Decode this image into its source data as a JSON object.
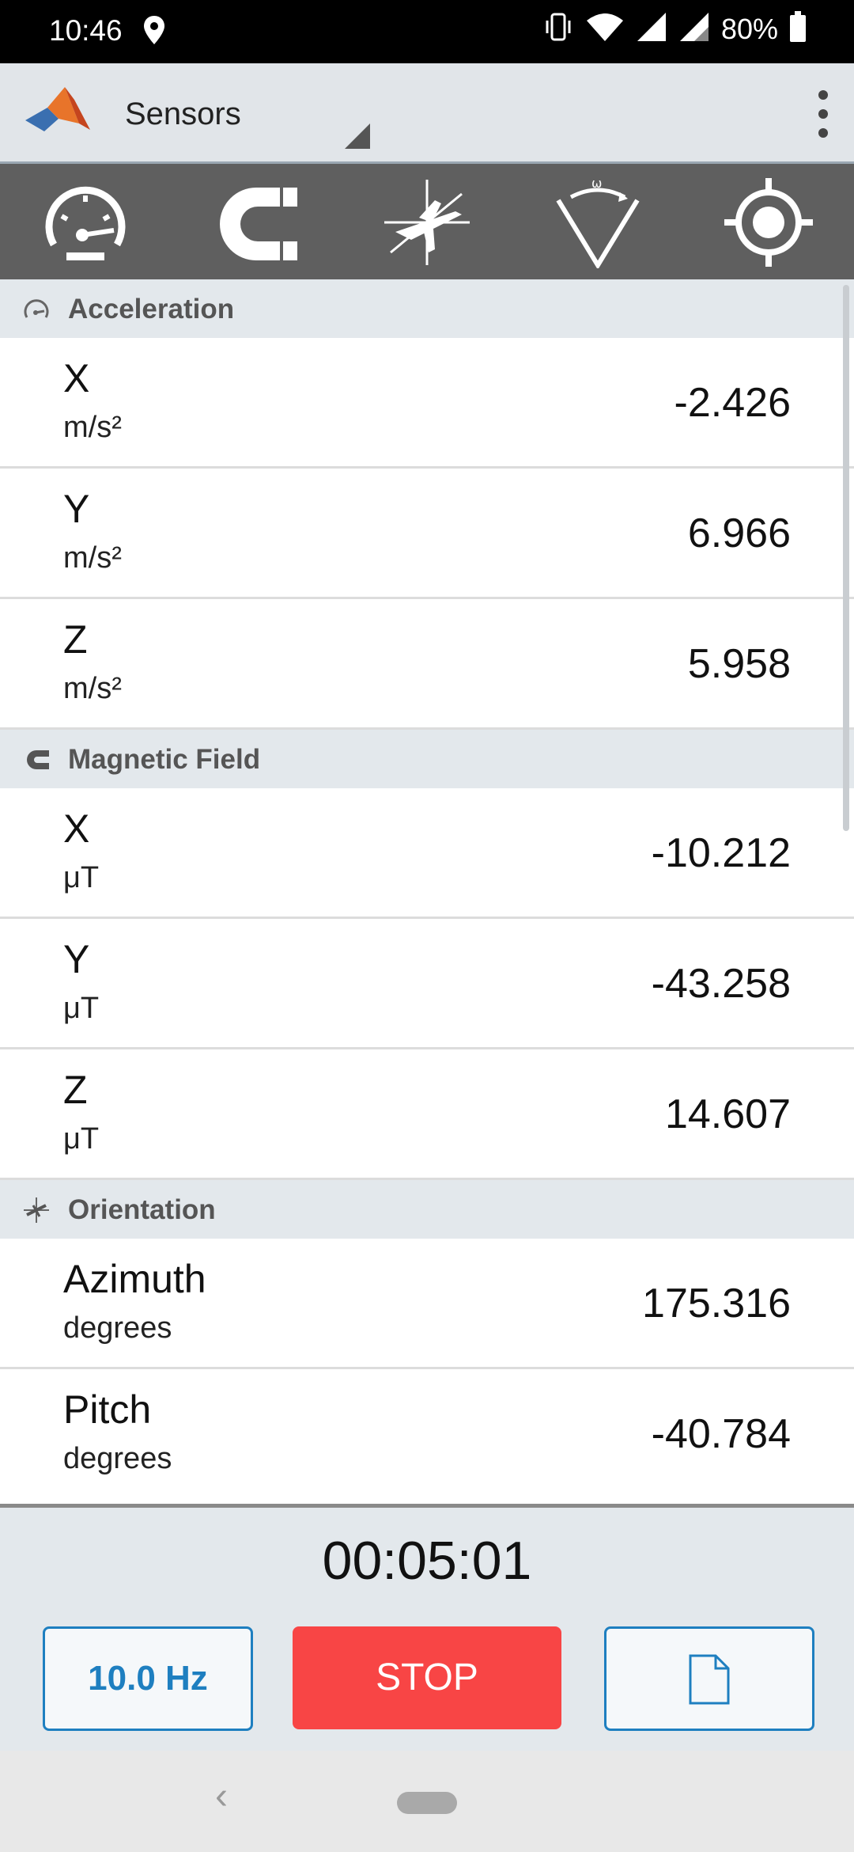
{
  "status_bar": {
    "time": "10:46",
    "battery": "80%",
    "icons": [
      "location-icon",
      "vibrate-icon",
      "wifi-icon",
      "signal-icon",
      "signal-icon-2",
      "battery-icon"
    ]
  },
  "app_bar": {
    "title": "Sensors",
    "logo": "matlab-logo",
    "menu_icon": "more-vert-icon"
  },
  "toolbar": {
    "tools": [
      "acceleration-icon",
      "magnetic-field-icon",
      "orientation-icon",
      "angular-velocity-icon",
      "position-icon"
    ]
  },
  "sections": [
    {
      "title": "Acceleration",
      "rows": [
        {
          "label": "X",
          "unit": "m/s²",
          "value": "-2.426"
        },
        {
          "label": "Y",
          "unit": "m/s²",
          "value": "6.966"
        },
        {
          "label": "Z",
          "unit": "m/s²",
          "value": "5.958"
        }
      ]
    },
    {
      "title": "Magnetic Field",
      "rows": [
        {
          "label": "X",
          "unit": "μT",
          "value": "-10.212"
        },
        {
          "label": "Y",
          "unit": "μT",
          "value": "-43.258"
        },
        {
          "label": "Z",
          "unit": "μT",
          "value": "14.607"
        }
      ]
    },
    {
      "title": "Orientation",
      "rows": [
        {
          "label": "Azimuth",
          "unit": "degrees",
          "value": "175.316"
        },
        {
          "label": "Pitch",
          "unit": "degrees",
          "value": "-40.784"
        }
      ]
    }
  ],
  "bottom": {
    "timer": "00:05:01",
    "rate_button": "10.0 Hz",
    "stop_button": "STOP",
    "log_icon": "file-icon"
  },
  "colors": {
    "accent": "#1e7fc0",
    "stop": "#f84545",
    "toolbar": "#5f5f5f"
  }
}
